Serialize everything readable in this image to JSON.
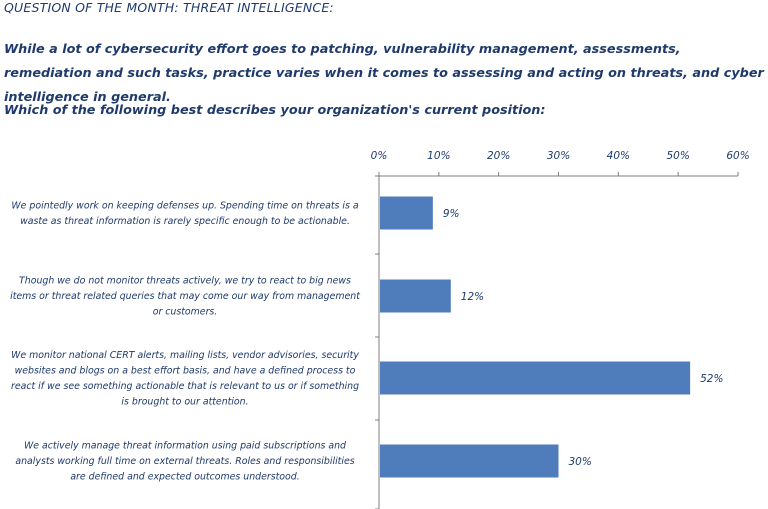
{
  "header": {
    "title": "QUESTION OF THE MONTH: THREAT INTELLIGENCE:",
    "intro": "While a lot of cybersecurity effort goes to patching, vulnerability management, assessments, remediation and such tasks, practice varies when it comes to assessing and acting on threats, and cyber intelligence in general.",
    "question": "Which of the following best describes your organization's current position:"
  },
  "chart_data": {
    "type": "bar",
    "orientation": "horizontal",
    "categories": [
      [
        "We pointedly work on keeping defenses up.  Spending time on threats is a",
        "waste as threat information is rarely specific enough to be actionable."
      ],
      [
        "Though we do not monitor threats actively, we try to react to big news",
        "items or threat related queries that may come our way from management",
        "or customers."
      ],
      [
        "We monitor national CERT alerts, mailing lists, vendor advisories, security",
        "websites and blogs on a best effort basis, and have a defined process to",
        "react if we see something actionable that is relevant to us or if something",
        "is brought to our attention."
      ],
      [
        "We actively manage threat information using paid subscriptions and",
        "analysts working full time on external threats.  Roles and responsibilities",
        "are defined and expected outcomes understood."
      ]
    ],
    "values": [
      9,
      12,
      52,
      30
    ],
    "data_labels": [
      "9%",
      "12%",
      "52%",
      "30%"
    ],
    "xlim": [
      0,
      60
    ],
    "x_ticks": [
      "0%",
      "10%",
      "20%",
      "30%",
      "40%",
      "50%",
      "60%"
    ],
    "x_axis_position": "top",
    "grid": false,
    "bar_color": "#4f7dbb",
    "text_color": "#1f3a6b"
  }
}
